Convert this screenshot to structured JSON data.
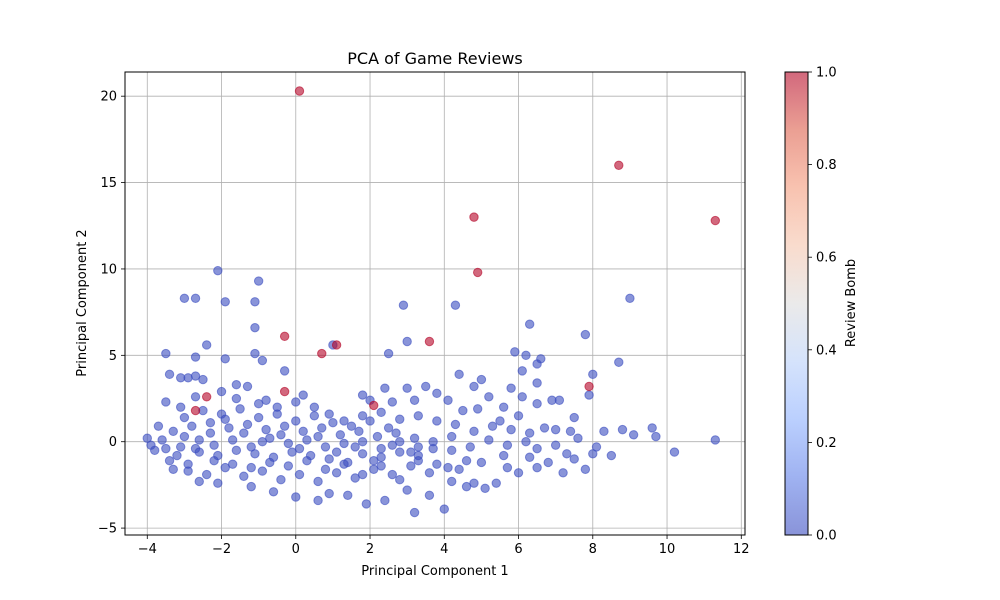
{
  "chart_data": {
    "type": "scatter",
    "title": "PCA of Game Reviews",
    "xlabel": "Principal Component 1",
    "ylabel": "Principal Component 2",
    "xlim": [
      -4.6,
      12.1
    ],
    "ylim": [
      -5.4,
      21.4
    ],
    "xticks": [
      -4,
      -2,
      0,
      2,
      4,
      6,
      8,
      10,
      12
    ],
    "yticks": [
      -5,
      0,
      5,
      10,
      15,
      20
    ],
    "grid": true,
    "colorbar": {
      "label": "Review Bomb",
      "range": [
        0.0,
        1.0
      ],
      "ticks": [
        "0.0",
        "0.2",
        "0.4",
        "0.6",
        "0.8",
        "1.0"
      ],
      "colormap": "coolwarm",
      "low_color": "#3b4cc0",
      "high_color": "#b40426"
    },
    "point_alpha": 0.6,
    "series": [
      {
        "review_bomb": 0,
        "color": "#3b4cc0",
        "points": [
          [
            -2.1,
            9.9
          ],
          [
            -1.0,
            9.3
          ],
          [
            -3.0,
            8.3
          ],
          [
            -2.7,
            8.3
          ],
          [
            -1.9,
            8.1
          ],
          [
            -1.1,
            8.1
          ],
          [
            -1.1,
            6.6
          ],
          [
            -2.4,
            5.6
          ],
          [
            -3.5,
            5.1
          ],
          [
            -2.7,
            4.9
          ],
          [
            -1.9,
            4.8
          ],
          [
            -1.1,
            5.1
          ],
          [
            -0.9,
            4.7
          ],
          [
            -0.3,
            4.1
          ],
          [
            -3.4,
            3.9
          ],
          [
            -3.1,
            3.7
          ],
          [
            -2.9,
            3.7
          ],
          [
            -2.7,
            3.8
          ],
          [
            -2.5,
            3.6
          ],
          [
            -1.6,
            3.3
          ],
          [
            -1.3,
            3.2
          ],
          [
            -0.8,
            2.4
          ],
          [
            0.2,
            2.7
          ],
          [
            0.5,
            2.0
          ],
          [
            1.0,
            5.6
          ],
          [
            2.5,
            5.1
          ],
          [
            2.9,
            7.9
          ],
          [
            3.0,
            5.8
          ],
          [
            4.3,
            7.9
          ],
          [
            6.3,
            6.8
          ],
          [
            5.9,
            5.2
          ],
          [
            6.2,
            5.0
          ],
          [
            6.5,
            4.5
          ],
          [
            6.6,
            4.8
          ],
          [
            7.8,
            6.2
          ],
          [
            8.7,
            4.6
          ],
          [
            9.0,
            8.3
          ],
          [
            8.0,
            3.9
          ],
          [
            6.5,
            3.4
          ],
          [
            6.1,
            4.1
          ],
          [
            5.0,
            3.6
          ],
          [
            4.4,
            3.9
          ],
          [
            4.8,
            3.2
          ],
          [
            3.5,
            3.2
          ],
          [
            3.0,
            3.1
          ],
          [
            2.4,
            3.1
          ],
          [
            1.8,
            2.7
          ],
          [
            2.0,
            2.4
          ],
          [
            2.6,
            2.3
          ],
          [
            3.2,
            2.4
          ],
          [
            3.8,
            2.8
          ],
          [
            4.1,
            2.4
          ],
          [
            4.5,
            1.8
          ],
          [
            5.2,
            2.6
          ],
          [
            5.6,
            2.0
          ],
          [
            6.1,
            2.6
          ],
          [
            6.5,
            2.2
          ],
          [
            6.9,
            2.4
          ],
          [
            7.1,
            2.4
          ],
          [
            7.5,
            1.4
          ],
          [
            7.0,
            0.7
          ],
          [
            7.4,
            0.6
          ],
          [
            8.3,
            0.6
          ],
          [
            8.8,
            0.7
          ],
          [
            9.6,
            0.8
          ],
          [
            9.7,
            0.3
          ],
          [
            9.1,
            0.4
          ],
          [
            10.2,
            -0.6
          ],
          [
            11.3,
            0.1
          ],
          [
            8.5,
            -0.8
          ],
          [
            8.0,
            -0.7
          ],
          [
            7.8,
            -1.6
          ],
          [
            7.2,
            -1.8
          ],
          [
            7.5,
            -1.0
          ],
          [
            7.3,
            -0.7
          ],
          [
            6.8,
            -1.2
          ],
          [
            6.5,
            -1.5
          ],
          [
            6.3,
            -0.9
          ],
          [
            6.0,
            -1.8
          ],
          [
            5.7,
            -1.5
          ],
          [
            5.4,
            -2.4
          ],
          [
            5.1,
            -2.7
          ],
          [
            4.8,
            -2.4
          ],
          [
            4.6,
            -2.6
          ],
          [
            4.2,
            -2.3
          ],
          [
            4.0,
            -3.9
          ],
          [
            3.6,
            -3.1
          ],
          [
            3.2,
            -4.1
          ],
          [
            3.0,
            -2.8
          ],
          [
            2.4,
            -3.4
          ],
          [
            1.9,
            -3.6
          ],
          [
            1.4,
            -3.1
          ],
          [
            0.9,
            -3.0
          ],
          [
            0.6,
            -3.4
          ],
          [
            0.0,
            -3.2
          ],
          [
            -0.6,
            -2.9
          ],
          [
            -1.2,
            -2.6
          ],
          [
            -2.1,
            -2.4
          ],
          [
            -2.6,
            -2.3
          ],
          [
            -2.9,
            -1.7
          ],
          [
            -3.4,
            -1.1
          ],
          [
            -3.8,
            -0.5
          ],
          [
            -4.0,
            0.2
          ],
          [
            -3.7,
            0.9
          ],
          [
            -3.5,
            2.3
          ],
          [
            -3.1,
            2.0
          ],
          [
            -2.7,
            2.6
          ],
          [
            -2.0,
            2.9
          ],
          [
            -1.6,
            2.5
          ],
          [
            -1.0,
            2.2
          ],
          [
            -0.5,
            2.0
          ],
          [
            0.0,
            2.3
          ],
          [
            0.9,
            1.6
          ],
          [
            1.3,
            1.2
          ],
          [
            1.8,
            1.5
          ],
          [
            2.3,
            1.7
          ],
          [
            2.8,
            1.3
          ],
          [
            3.3,
            1.5
          ],
          [
            3.8,
            1.2
          ],
          [
            4.3,
            1.0
          ],
          [
            4.8,
            0.6
          ],
          [
            5.3,
            0.9
          ],
          [
            5.8,
            0.7
          ],
          [
            6.3,
            0.5
          ],
          [
            6.7,
            0.8
          ],
          [
            6.2,
            0.0
          ],
          [
            5.7,
            -0.2
          ],
          [
            5.2,
            0.1
          ],
          [
            4.7,
            -0.3
          ],
          [
            4.2,
            -0.5
          ],
          [
            3.7,
            -0.4
          ],
          [
            3.3,
            -0.8
          ],
          [
            2.8,
            -0.6
          ],
          [
            2.3,
            -0.9
          ],
          [
            1.8,
            -0.7
          ],
          [
            1.4,
            -1.2
          ],
          [
            0.9,
            -1.0
          ],
          [
            0.4,
            -0.8
          ],
          [
            -0.1,
            -0.6
          ],
          [
            -0.6,
            -0.9
          ],
          [
            -1.1,
            -0.7
          ],
          [
            -1.6,
            -0.5
          ],
          [
            -2.1,
            -0.8
          ],
          [
            -2.6,
            -0.6
          ],
          [
            -3.1,
            -0.3
          ],
          [
            -3.6,
            0.1
          ],
          [
            -3.3,
            0.6
          ],
          [
            -2.8,
            0.9
          ],
          [
            -2.3,
            0.5
          ],
          [
            -1.8,
            0.8
          ],
          [
            -1.3,
            1.0
          ],
          [
            -0.8,
            0.7
          ],
          [
            -0.3,
            0.9
          ],
          [
            0.2,
            0.6
          ],
          [
            0.7,
            0.8
          ],
          [
            1.2,
            0.4
          ],
          [
            1.7,
            0.6
          ],
          [
            2.2,
            0.3
          ],
          [
            2.7,
            0.5
          ],
          [
            3.2,
            0.2
          ],
          [
            3.7,
            0.0
          ],
          [
            4.2,
            0.3
          ],
          [
            4.6,
            -1.1
          ],
          [
            4.1,
            -1.5
          ],
          [
            3.6,
            -1.8
          ],
          [
            3.1,
            -1.4
          ],
          [
            2.6,
            -1.9
          ],
          [
            2.1,
            -1.6
          ],
          [
            1.6,
            -2.1
          ],
          [
            1.1,
            -1.8
          ],
          [
            0.6,
            -2.3
          ],
          [
            0.1,
            -1.9
          ],
          [
            -0.4,
            -2.2
          ],
          [
            -0.9,
            -1.7
          ],
          [
            -1.4,
            -2.0
          ],
          [
            -1.9,
            -1.5
          ],
          [
            -2.4,
            -1.9
          ],
          [
            -2.9,
            -1.3
          ],
          [
            -3.3,
            -1.6
          ],
          [
            -2.2,
            -1.1
          ],
          [
            -1.7,
            -1.3
          ],
          [
            -1.2,
            -1.5
          ],
          [
            -0.7,
            -1.2
          ],
          [
            -0.2,
            -1.4
          ],
          [
            0.3,
            -1.1
          ],
          [
            0.8,
            -1.6
          ],
          [
            1.3,
            -1.3
          ],
          [
            1.8,
            -1.9
          ],
          [
            2.3,
            -1.4
          ],
          [
            2.8,
            -2.2
          ],
          [
            3.3,
            -1.1
          ],
          [
            3.8,
            -1.3
          ],
          [
            -3.0,
            1.4
          ],
          [
            -2.5,
            1.8
          ],
          [
            -2.0,
            1.6
          ],
          [
            -1.5,
            1.9
          ],
          [
            -1.0,
            1.4
          ],
          [
            -0.5,
            1.6
          ],
          [
            0.0,
            1.2
          ],
          [
            0.5,
            1.5
          ],
          [
            1.0,
            1.1
          ],
          [
            1.5,
            0.9
          ],
          [
            2.0,
            1.2
          ],
          [
            2.5,
            0.8
          ],
          [
            -3.2,
            -0.8
          ],
          [
            -2.7,
            -0.4
          ],
          [
            -2.2,
            -0.2
          ],
          [
            -1.7,
            0.1
          ],
          [
            -1.2,
            -0.3
          ],
          [
            -0.7,
            0.2
          ],
          [
            -0.2,
            -0.1
          ],
          [
            0.3,
            0.1
          ],
          [
            0.8,
            -0.3
          ],
          [
            1.3,
            -0.1
          ],
          [
            1.8,
            0.0
          ],
          [
            2.3,
            -0.4
          ],
          [
            2.8,
            0.0
          ],
          [
            3.3,
            -0.3
          ],
          [
            -3.9,
            -0.2
          ],
          [
            -3.5,
            -0.4
          ],
          [
            -3.0,
            0.3
          ],
          [
            -2.6,
            0.1
          ],
          [
            -2.3,
            1.1
          ],
          [
            -1.9,
            1.3
          ],
          [
            -1.4,
            0.5
          ],
          [
            -0.9,
            0.0
          ],
          [
            -0.4,
            0.4
          ],
          [
            0.1,
            -0.4
          ],
          [
            0.6,
            0.3
          ],
          [
            1.1,
            -0.6
          ],
          [
            1.6,
            -0.3
          ],
          [
            2.1,
            -1.1
          ],
          [
            2.6,
            -0.2
          ],
          [
            3.1,
            -0.6
          ],
          [
            5.5,
            1.2
          ],
          [
            6.0,
            1.5
          ],
          [
            4.9,
            1.9
          ],
          [
            4.4,
            -1.6
          ],
          [
            5.0,
            -1.2
          ],
          [
            5.6,
            -0.8
          ],
          [
            6.5,
            -0.4
          ],
          [
            7.0,
            -0.2
          ],
          [
            7.6,
            0.2
          ],
          [
            8.1,
            -0.3
          ],
          [
            7.9,
            2.7
          ],
          [
            5.8,
            3.1
          ]
        ]
      },
      {
        "review_bomb": 1,
        "color": "#b40426",
        "points": [
          [
            0.1,
            20.3
          ],
          [
            8.7,
            16.0
          ],
          [
            4.8,
            13.0
          ],
          [
            11.3,
            12.8
          ],
          [
            4.9,
            9.8
          ],
          [
            -0.3,
            6.1
          ],
          [
            0.7,
            5.1
          ],
          [
            1.1,
            5.6
          ],
          [
            3.6,
            5.8
          ],
          [
            7.9,
            3.2
          ],
          [
            -0.3,
            2.9
          ],
          [
            -2.4,
            2.6
          ],
          [
            -2.7,
            1.8
          ],
          [
            2.1,
            2.1
          ]
        ]
      }
    ]
  }
}
